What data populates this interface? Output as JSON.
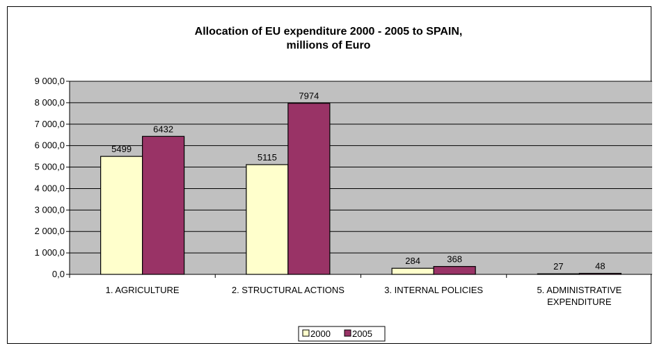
{
  "chart_data": {
    "type": "bar",
    "title": "Allocation of EU expenditure 2000 - 2005 to SPAIN,",
    "subtitle": "millions of Euro",
    "categories": [
      [
        "1. AGRICULTURE"
      ],
      [
        "2. STRUCTURAL ACTIONS"
      ],
      [
        "3. INTERNAL POLICIES"
      ],
      [
        "5. ADMINISTRATIVE",
        "EXPENDITURE"
      ]
    ],
    "series": [
      {
        "name": "2000",
        "values": [
          5499,
          5115,
          284,
          27
        ],
        "color": "#FFFFCC"
      },
      {
        "name": "2005",
        "values": [
          6432,
          7974,
          368,
          48
        ],
        "color": "#993366"
      }
    ],
    "data_labels": [
      [
        "5499",
        "5115",
        "284",
        "27"
      ],
      [
        "6432",
        "7974",
        "368",
        "48"
      ]
    ],
    "ylim": [
      0,
      9000
    ],
    "yticks": [
      0,
      1000,
      2000,
      3000,
      4000,
      5000,
      6000,
      7000,
      8000,
      9000
    ],
    "ytick_labels": [
      "0,0",
      "1 000,0",
      "2 000,0",
      "3 000,0",
      "4 000,0",
      "5 000,0",
      "6 000,0",
      "7 000,0",
      "8 000,0",
      "9 000,0"
    ],
    "xlabel": "",
    "ylabel": "",
    "grid": true,
    "plot_background": "#C0C0C0",
    "legend_position": "bottom"
  }
}
